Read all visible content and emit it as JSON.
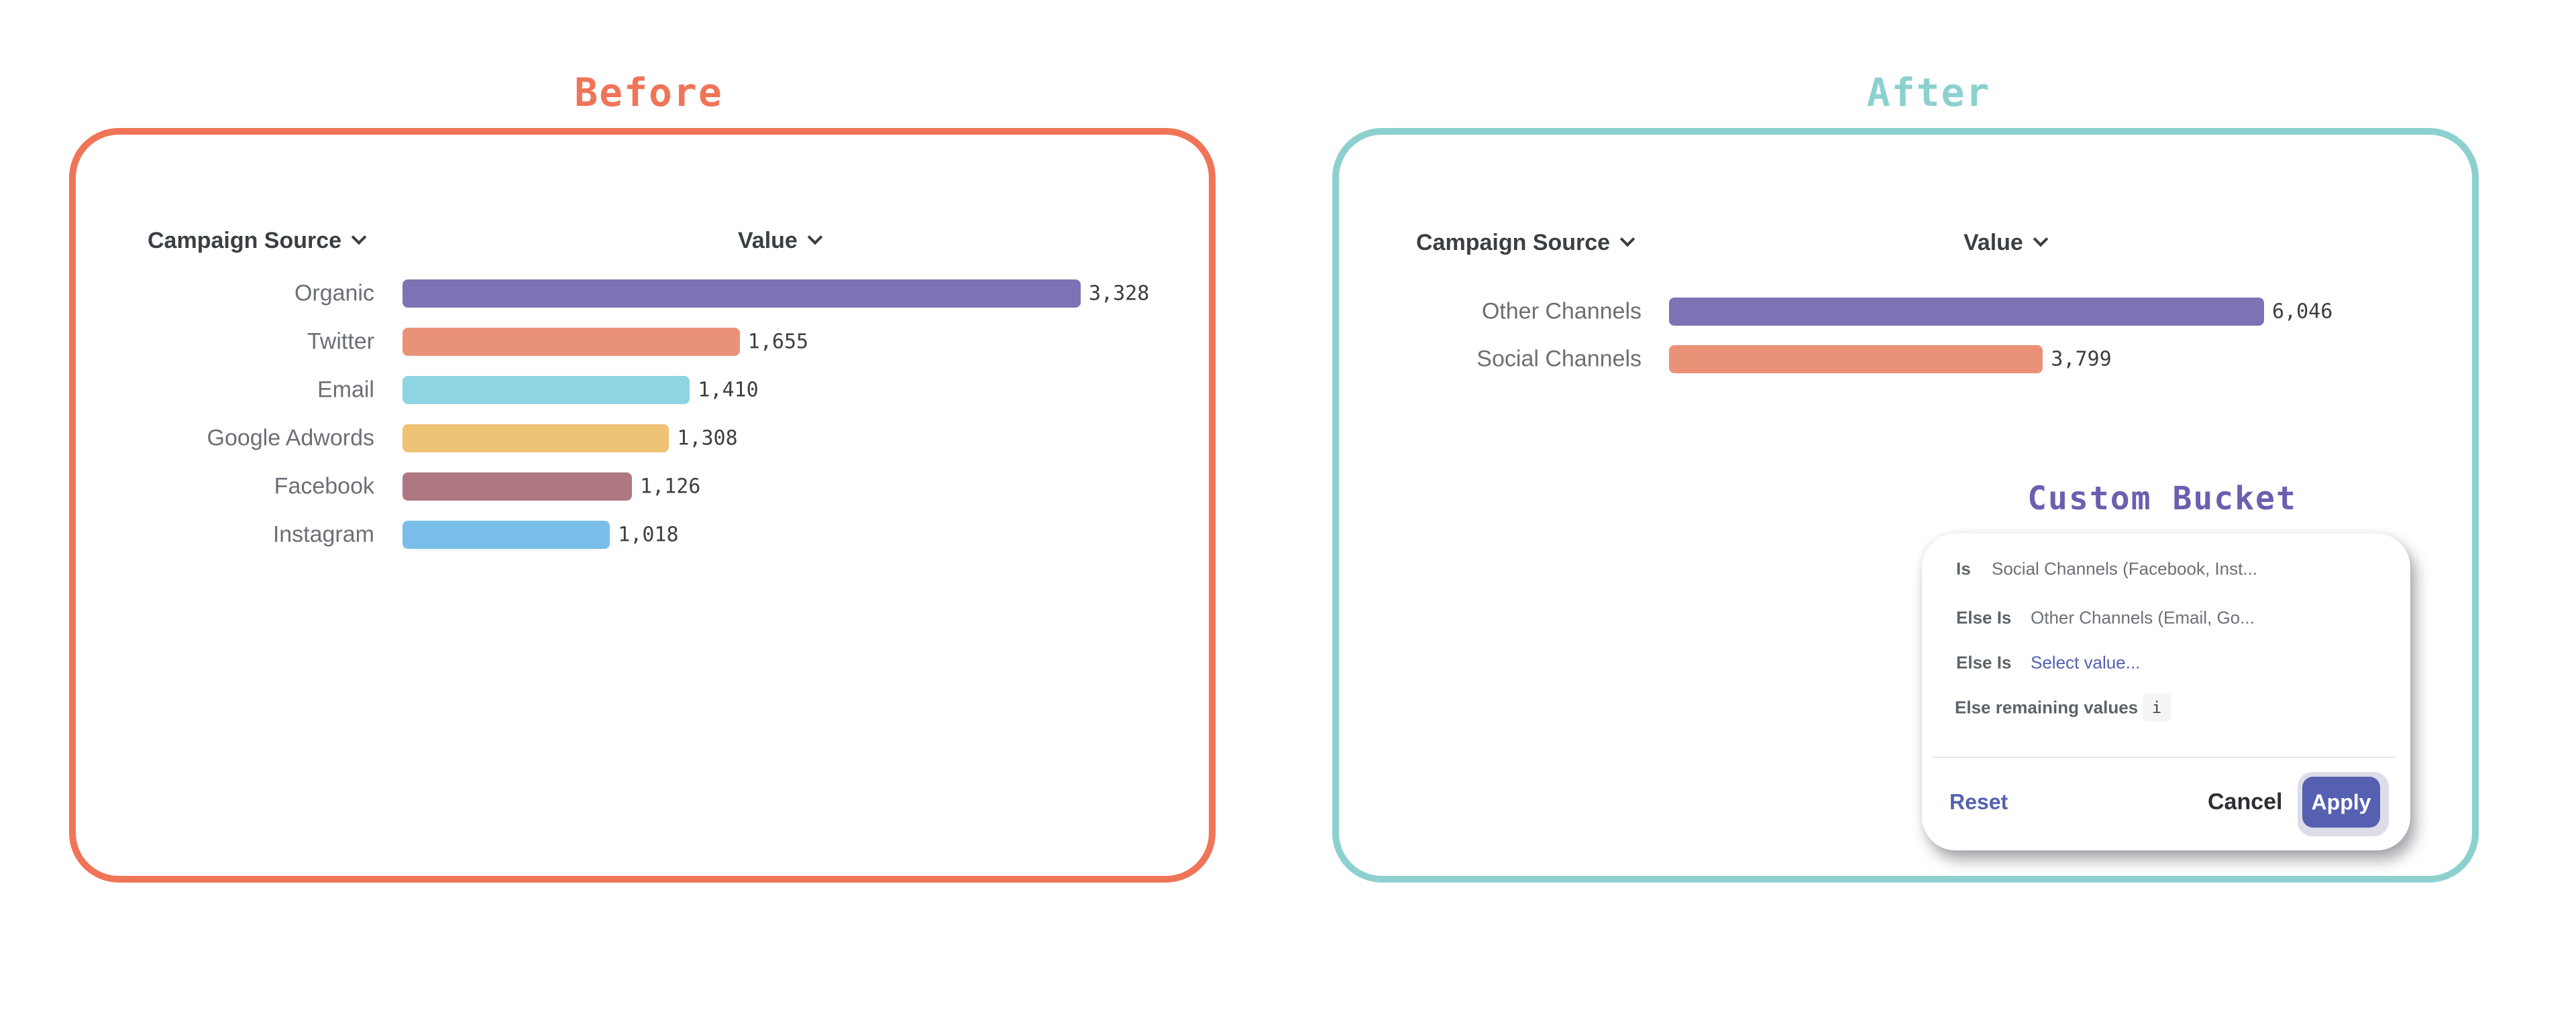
{
  "before_title": "Before",
  "after_title": "After",
  "colors": {
    "before_border": "#F07457",
    "after_border": "#8CD1D0",
    "bucket_title": "#6B5FB0",
    "accent": "#5561B0"
  },
  "chart_data": [
    {
      "type": "bar",
      "orientation": "horizontal",
      "panel": "Before",
      "xlabel": "Value",
      "ylabel": "Campaign Source",
      "categories": [
        "Organic",
        "Twitter",
        "Email",
        "Google Adwords",
        "Facebook",
        "Instagram"
      ],
      "values": [
        3328,
        1655,
        1410,
        1308,
        1126,
        1018
      ],
      "value_labels": [
        "3,328",
        "1,655",
        "1,410",
        "1,308",
        "1,126",
        "1,018"
      ],
      "colors": [
        "#7E72B5",
        "#EA9278",
        "#8FD4E2",
        "#EEC376",
        "#AE7781",
        "#79BEE8"
      ],
      "grid": false
    },
    {
      "type": "bar",
      "orientation": "horizontal",
      "panel": "After",
      "xlabel": "Value",
      "ylabel": "Campaign Source",
      "categories": [
        "Other Channels",
        "Social Channels"
      ],
      "values": [
        6046,
        3799
      ],
      "value_labels": [
        "6,046",
        "3,799"
      ],
      "colors": [
        "#7E72B5",
        "#EA9278"
      ],
      "grid": false
    }
  ],
  "custom_bucket": {
    "title": "Custom Bucket",
    "rows": [
      {
        "label": "Is",
        "value": "Social Channels (Facebook, Inst..."
      },
      {
        "label": "Else Is",
        "value": "Other Channels (Email, Go..."
      },
      {
        "label": "Else Is",
        "value": "Select value..."
      }
    ],
    "remaining_label": "Else remaining values",
    "info_badge": "i",
    "reset": "Reset",
    "cancel": "Cancel",
    "apply": "Apply"
  }
}
